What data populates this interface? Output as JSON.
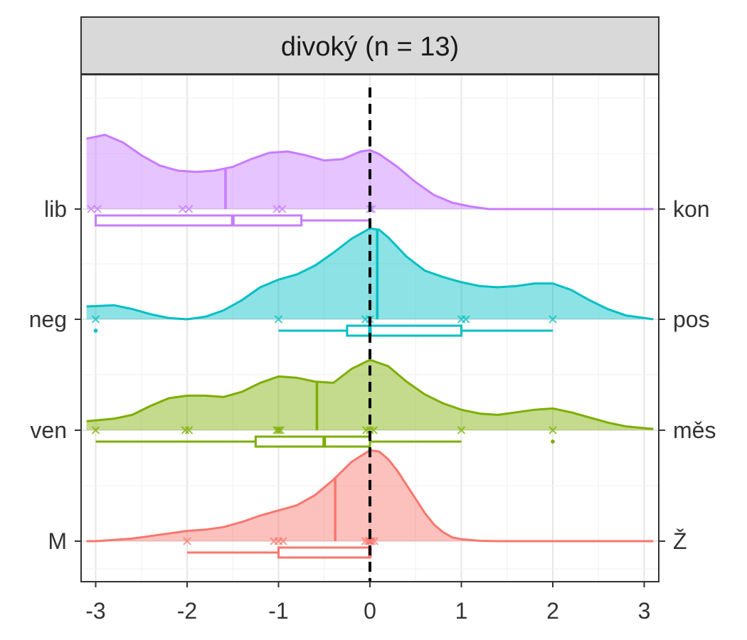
{
  "chart_data": {
    "type": "ridgeline-raincloud",
    "panel_title": "divoký (n = 13)",
    "x_axis": {
      "ticks": [
        -3,
        -2,
        -1,
        0,
        1,
        2,
        3
      ],
      "range": [
        -3.1,
        3.1
      ]
    },
    "reference_line_x": 0,
    "rows": [
      {
        "label_left": "M",
        "label_right": "Ž",
        "color": "#F8766D",
        "density": [
          [
            -3.1,
            0.0
          ],
          [
            -3.0,
            0.0
          ],
          [
            -2.8,
            0.01
          ],
          [
            -2.6,
            0.02
          ],
          [
            -2.4,
            0.04
          ],
          [
            -2.2,
            0.06
          ],
          [
            -2.0,
            0.08
          ],
          [
            -1.8,
            0.09
          ],
          [
            -1.6,
            0.11
          ],
          [
            -1.4,
            0.15
          ],
          [
            -1.2,
            0.2
          ],
          [
            -1.0,
            0.24
          ],
          [
            -0.8,
            0.28
          ],
          [
            -0.6,
            0.36
          ],
          [
            -0.4,
            0.48
          ],
          [
            -0.2,
            0.62
          ],
          [
            0.0,
            0.71
          ],
          [
            0.1,
            0.7
          ],
          [
            0.2,
            0.64
          ],
          [
            0.3,
            0.55
          ],
          [
            0.4,
            0.44
          ],
          [
            0.5,
            0.33
          ],
          [
            0.6,
            0.22
          ],
          [
            0.7,
            0.13
          ],
          [
            0.8,
            0.07
          ],
          [
            0.9,
            0.03
          ],
          [
            1.0,
            0.015
          ],
          [
            1.2,
            0.003
          ],
          [
            1.4,
            0.0
          ],
          [
            3.1,
            0.0
          ]
        ],
        "mean": -0.38,
        "points": [
          -2.0,
          -1.05,
          -0.95,
          -1.0,
          -0.05,
          0.0,
          0.05,
          0.0,
          -0.02,
          0.02
        ],
        "box": {
          "whisker_low": -2.0,
          "q1": -1.0,
          "median": 0.0,
          "q3": 0.0,
          "whisker_high": 0.0
        },
        "outliers": []
      },
      {
        "label_left": "ven",
        "label_right": "měs",
        "color": "#7CAE00",
        "density": [
          [
            -3.1,
            0.07
          ],
          [
            -2.8,
            0.09
          ],
          [
            -2.6,
            0.12
          ],
          [
            -2.4,
            0.19
          ],
          [
            -2.2,
            0.25
          ],
          [
            -2.0,
            0.27
          ],
          [
            -1.8,
            0.27
          ],
          [
            -1.6,
            0.26
          ],
          [
            -1.4,
            0.3
          ],
          [
            -1.2,
            0.37
          ],
          [
            -1.0,
            0.42
          ],
          [
            -0.8,
            0.41
          ],
          [
            -0.6,
            0.38
          ],
          [
            -0.4,
            0.37
          ],
          [
            -0.2,
            0.48
          ],
          [
            0.0,
            0.55
          ],
          [
            0.2,
            0.5
          ],
          [
            0.4,
            0.38
          ],
          [
            0.6,
            0.28
          ],
          [
            0.8,
            0.21
          ],
          [
            1.0,
            0.16
          ],
          [
            1.2,
            0.13
          ],
          [
            1.4,
            0.12
          ],
          [
            1.6,
            0.14
          ],
          [
            1.8,
            0.16
          ],
          [
            2.0,
            0.17
          ],
          [
            2.2,
            0.14
          ],
          [
            2.4,
            0.1
          ],
          [
            2.6,
            0.06
          ],
          [
            2.8,
            0.03
          ],
          [
            3.1,
            0.01
          ]
        ],
        "mean": -0.58,
        "points": [
          -3.0,
          -2.02,
          -1.98,
          -1.02,
          -0.98,
          -1.0,
          -0.04,
          0.04,
          0.0,
          1.0,
          2.0
        ],
        "box": {
          "whisker_low": -3.0,
          "q1": -1.25,
          "median": -0.5,
          "q3": 0.0,
          "whisker_high": 1.0
        },
        "outliers": [
          2.0
        ]
      },
      {
        "label_left": "neg",
        "label_right": "pos",
        "color": "#00BFC4",
        "density": [
          [
            -3.1,
            0.1
          ],
          [
            -2.8,
            0.11
          ],
          [
            -2.6,
            0.08
          ],
          [
            -2.4,
            0.04
          ],
          [
            -2.2,
            0.01
          ],
          [
            -2.0,
            0.0
          ],
          [
            -1.8,
            0.02
          ],
          [
            -1.6,
            0.07
          ],
          [
            -1.4,
            0.15
          ],
          [
            -1.2,
            0.25
          ],
          [
            -1.0,
            0.31
          ],
          [
            -0.8,
            0.35
          ],
          [
            -0.6,
            0.42
          ],
          [
            -0.4,
            0.52
          ],
          [
            -0.2,
            0.63
          ],
          [
            0.0,
            0.71
          ],
          [
            0.1,
            0.7
          ],
          [
            0.2,
            0.64
          ],
          [
            0.4,
            0.49
          ],
          [
            0.6,
            0.38
          ],
          [
            0.8,
            0.33
          ],
          [
            1.0,
            0.29
          ],
          [
            1.2,
            0.26
          ],
          [
            1.4,
            0.25
          ],
          [
            1.6,
            0.26
          ],
          [
            1.8,
            0.28
          ],
          [
            2.0,
            0.28
          ],
          [
            2.2,
            0.23
          ],
          [
            2.4,
            0.15
          ],
          [
            2.6,
            0.08
          ],
          [
            2.8,
            0.03
          ],
          [
            3.1,
            0.0
          ]
        ],
        "mean": 0.08,
        "points": [
          -3.0,
          -1.0,
          -0.05,
          0.0,
          1.0,
          1.05,
          2.0
        ],
        "box": {
          "whisker_low": -1.0,
          "q1": -0.25,
          "median": 0.0,
          "q3": 1.0,
          "whisker_high": 2.0
        },
        "outliers": [
          -3.0
        ]
      },
      {
        "label_left": "lib",
        "label_right": "kon",
        "color": "#C77CFF",
        "density": [
          [
            -3.1,
            0.55
          ],
          [
            -2.9,
            0.58
          ],
          [
            -2.7,
            0.52
          ],
          [
            -2.5,
            0.42
          ],
          [
            -2.3,
            0.34
          ],
          [
            -2.1,
            0.3
          ],
          [
            -1.9,
            0.29
          ],
          [
            -1.7,
            0.3
          ],
          [
            -1.5,
            0.33
          ],
          [
            -1.3,
            0.39
          ],
          [
            -1.1,
            0.44
          ],
          [
            -0.9,
            0.45
          ],
          [
            -0.7,
            0.42
          ],
          [
            -0.5,
            0.38
          ],
          [
            -0.3,
            0.39
          ],
          [
            -0.1,
            0.45
          ],
          [
            0.0,
            0.46
          ],
          [
            0.1,
            0.43
          ],
          [
            0.3,
            0.33
          ],
          [
            0.5,
            0.21
          ],
          [
            0.7,
            0.11
          ],
          [
            0.9,
            0.05
          ],
          [
            1.1,
            0.02
          ],
          [
            1.3,
            0.0
          ],
          [
            3.1,
            0.0
          ]
        ],
        "mean": -1.58,
        "points": [
          -3.05,
          -2.98,
          -2.05,
          -1.98,
          -1.02,
          -0.96,
          0.0,
          0.02
        ],
        "box": {
          "whisker_low": -3.0,
          "q1": -3.0,
          "median": -1.5,
          "q3": -0.75,
          "whisker_high": 0.0
        },
        "outliers": []
      }
    ]
  }
}
